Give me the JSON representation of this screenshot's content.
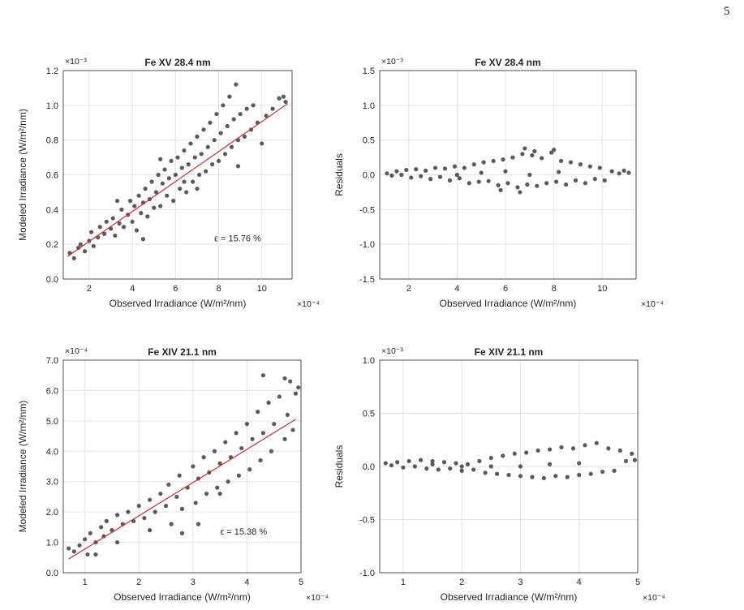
{
  "page_number": "5",
  "chart_data": [
    {
      "type": "scatter",
      "title": "Fe XV 28.4 nm",
      "xlabel": "Observed Irradiance (W/m²/nm)",
      "ylabel": "Modeled Irradiance (W/m²/nm)",
      "x_exponent": "×10⁻⁴",
      "y_exponent": "×10⁻³",
      "xlim": [
        0.8,
        11.4
      ],
      "ylim": [
        0.0,
        1.2
      ],
      "xticks": [
        "2",
        "4",
        "6",
        "8",
        "10"
      ],
      "yticks": [
        "0.0",
        "0.2",
        "0.4",
        "0.6",
        "0.8",
        "1.0",
        "1.2"
      ],
      "xtick_values": [
        2,
        4,
        6,
        8,
        10
      ],
      "ytick_values": [
        0,
        0.2,
        0.4,
        0.6,
        0.8,
        1.0,
        1.2
      ],
      "grid": true,
      "fit_line": {
        "x": [
          1.0,
          11.2
        ],
        "y": [
          0.13,
          1.01
        ]
      },
      "annotation": "ϵ = 15.76 %",
      "point_color": "#5a5a5a",
      "fit_color": "#cc2b2b",
      "points": [
        [
          1.1,
          0.15
        ],
        [
          1.3,
          0.12
        ],
        [
          1.5,
          0.18
        ],
        [
          1.6,
          0.2
        ],
        [
          1.8,
          0.16
        ],
        [
          2.0,
          0.22
        ],
        [
          2.1,
          0.27
        ],
        [
          2.2,
          0.19
        ],
        [
          2.4,
          0.24
        ],
        [
          2.5,
          0.3
        ],
        [
          2.7,
          0.26
        ],
        [
          2.8,
          0.33
        ],
        [
          3.0,
          0.29
        ],
        [
          3.1,
          0.35
        ],
        [
          3.2,
          0.25
        ],
        [
          3.4,
          0.32
        ],
        [
          3.5,
          0.4
        ],
        [
          3.6,
          0.3
        ],
        [
          3.8,
          0.37
        ],
        [
          3.9,
          0.45
        ],
        [
          4.0,
          0.33
        ],
        [
          4.1,
          0.42
        ],
        [
          4.2,
          0.28
        ],
        [
          4.3,
          0.48
        ],
        [
          4.4,
          0.38
        ],
        [
          4.5,
          0.44
        ],
        [
          4.6,
          0.52
        ],
        [
          4.7,
          0.36
        ],
        [
          4.8,
          0.46
        ],
        [
          4.9,
          0.56
        ],
        [
          5.0,
          0.41
        ],
        [
          5.1,
          0.5
        ],
        [
          5.2,
          0.6
        ],
        [
          5.3,
          0.42
        ],
        [
          5.4,
          0.55
        ],
        [
          5.5,
          0.63
        ],
        [
          5.6,
          0.48
        ],
        [
          5.7,
          0.58
        ],
        [
          5.8,
          0.68
        ],
        [
          5.9,
          0.45
        ],
        [
          6.0,
          0.6
        ],
        [
          6.1,
          0.7
        ],
        [
          6.2,
          0.52
        ],
        [
          6.3,
          0.64
        ],
        [
          6.4,
          0.74
        ],
        [
          6.5,
          0.5
        ],
        [
          6.6,
          0.66
        ],
        [
          6.7,
          0.78
        ],
        [
          6.8,
          0.56
        ],
        [
          6.9,
          0.7
        ],
        [
          7.0,
          0.82
        ],
        [
          7.1,
          0.6
        ],
        [
          7.2,
          0.72
        ],
        [
          7.3,
          0.86
        ],
        [
          7.4,
          0.62
        ],
        [
          7.5,
          0.76
        ],
        [
          7.6,
          0.9
        ],
        [
          7.7,
          0.66
        ],
        [
          7.8,
          0.8
        ],
        [
          7.9,
          0.95
        ],
        [
          8.0,
          0.68
        ],
        [
          8.1,
          0.84
        ],
        [
          8.2,
          1.0
        ],
        [
          8.3,
          0.72
        ],
        [
          8.4,
          0.88
        ],
        [
          8.5,
          1.05
        ],
        [
          8.6,
          0.76
        ],
        [
          8.7,
          0.92
        ],
        [
          8.8,
          1.12
        ],
        [
          8.9,
          0.8
        ],
        [
          9.0,
          0.95
        ],
        [
          9.2,
          0.82
        ],
        [
          9.3,
          0.98
        ],
        [
          9.5,
          0.86
        ],
        [
          9.6,
          1.0
        ],
        [
          9.8,
          0.9
        ],
        [
          10.0,
          0.78
        ],
        [
          10.2,
          0.94
        ],
        [
          10.5,
          0.98
        ],
        [
          10.8,
          1.04
        ],
        [
          11.0,
          1.05
        ],
        [
          11.1,
          1.02
        ],
        [
          4.5,
          0.23
        ],
        [
          8.9,
          0.65
        ],
        [
          3.3,
          0.45
        ],
        [
          6.4,
          0.56
        ],
        [
          7.0,
          0.52
        ],
        [
          5.3,
          0.69
        ]
      ]
    },
    {
      "type": "scatter",
      "title": "Fe XV 28.4 nm",
      "xlabel": "Observed Irradiance (W/m²/nm)",
      "ylabel": "Residuals",
      "x_exponent": "×10⁻⁴",
      "y_exponent": "×10⁻³",
      "xlim": [
        0.8,
        11.4
      ],
      "ylim": [
        -1.5,
        1.5
      ],
      "xticks": [
        "2",
        "4",
        "6",
        "8",
        "10"
      ],
      "yticks": [
        "-1.5",
        "-1.0",
        "-0.5",
        "0.0",
        "0.5",
        "1.0",
        "1.5"
      ],
      "xtick_values": [
        2,
        4,
        6,
        8,
        10
      ],
      "ytick_values": [
        -1.5,
        -1.0,
        -0.5,
        0,
        0.5,
        1.0,
        1.5
      ],
      "grid": true,
      "point_color": "#5a5a5a",
      "points": [
        [
          1.1,
          0.02
        ],
        [
          1.3,
          -0.01
        ],
        [
          1.5,
          0.05
        ],
        [
          1.7,
          0.0
        ],
        [
          1.9,
          0.07
        ],
        [
          2.1,
          -0.04
        ],
        [
          2.3,
          0.08
        ],
        [
          2.5,
          -0.02
        ],
        [
          2.7,
          0.06
        ],
        [
          2.9,
          -0.06
        ],
        [
          3.1,
          0.1
        ],
        [
          3.3,
          -0.03
        ],
        [
          3.5,
          0.09
        ],
        [
          3.7,
          -0.08
        ],
        [
          3.9,
          0.12
        ],
        [
          4.1,
          -0.05
        ],
        [
          4.3,
          0.1
        ],
        [
          4.5,
          -0.12
        ],
        [
          4.7,
          0.15
        ],
        [
          4.9,
          -0.1
        ],
        [
          5.1,
          0.18
        ],
        [
          5.3,
          -0.09
        ],
        [
          5.5,
          0.2
        ],
        [
          5.7,
          -0.15
        ],
        [
          5.9,
          0.22
        ],
        [
          6.1,
          -0.12
        ],
        [
          6.3,
          0.25
        ],
        [
          6.5,
          -0.18
        ],
        [
          6.7,
          0.3
        ],
        [
          6.9,
          -0.14
        ],
        [
          7.1,
          0.28
        ],
        [
          7.3,
          -0.16
        ],
        [
          7.5,
          0.24
        ],
        [
          7.7,
          -0.12
        ],
        [
          7.9,
          0.32
        ],
        [
          8.1,
          -0.1
        ],
        [
          8.3,
          0.2
        ],
        [
          8.5,
          -0.14
        ],
        [
          8.7,
          0.18
        ],
        [
          8.9,
          -0.08
        ],
        [
          9.1,
          0.15
        ],
        [
          9.3,
          -0.12
        ],
        [
          9.5,
          0.12
        ],
        [
          9.7,
          -0.06
        ],
        [
          9.9,
          0.1
        ],
        [
          10.1,
          -0.08
        ],
        [
          10.4,
          0.05
        ],
        [
          10.7,
          0.02
        ],
        [
          10.9,
          0.06
        ],
        [
          11.1,
          0.03
        ],
        [
          6.8,
          0.38
        ],
        [
          7.2,
          0.34
        ],
        [
          8.0,
          0.36
        ],
        [
          5.8,
          -0.22
        ],
        [
          6.6,
          -0.25
        ],
        [
          4.0,
          0.0
        ],
        [
          5.0,
          0.03
        ],
        [
          6.0,
          0.05
        ],
        [
          7.0,
          0.0
        ],
        [
          8.2,
          0.04
        ]
      ]
    },
    {
      "type": "scatter",
      "title": "Fe XIV 21.1 nm",
      "xlabel": "Observed Irradiance (W/m²/nm)",
      "ylabel": "Modeled Irradiance (W/m²/nm)",
      "x_exponent": "×10⁻⁴",
      "y_exponent": "×10⁻⁴",
      "xlim": [
        0.6,
        5.0
      ],
      "ylim": [
        0.0,
        7.0
      ],
      "xticks": [
        "1",
        "2",
        "3",
        "4",
        "5"
      ],
      "yticks": [
        "0.0",
        "1.0",
        "2.0",
        "3.0",
        "4.0",
        "5.0",
        "6.0",
        "7.0"
      ],
      "xtick_values": [
        1,
        2,
        3,
        4,
        5
      ],
      "ytick_values": [
        0,
        1,
        2,
        3,
        4,
        5,
        6,
        7
      ],
      "grid": true,
      "fit_line": {
        "x": [
          0.7,
          4.9
        ],
        "y": [
          0.45,
          5.05
        ]
      },
      "annotation": "ϵ = 15.38 %",
      "point_color": "#5a5a5a",
      "fit_color": "#cc2b2b",
      "points": [
        [
          0.7,
          0.8
        ],
        [
          0.8,
          0.7
        ],
        [
          0.9,
          0.9
        ],
        [
          1.0,
          1.1
        ],
        [
          1.05,
          0.6
        ],
        [
          1.1,
          1.3
        ],
        [
          1.2,
          1.0
        ],
        [
          1.3,
          1.5
        ],
        [
          1.35,
          1.2
        ],
        [
          1.4,
          1.7
        ],
        [
          1.5,
          1.4
        ],
        [
          1.6,
          1.9
        ],
        [
          1.7,
          1.6
        ],
        [
          1.8,
          2.0
        ],
        [
          1.9,
          1.7
        ],
        [
          2.0,
          2.2
        ],
        [
          2.1,
          1.8
        ],
        [
          2.2,
          2.4
        ],
        [
          2.3,
          2.0
        ],
        [
          2.4,
          2.6
        ],
        [
          2.5,
          2.2
        ],
        [
          2.55,
          2.9
        ],
        [
          2.6,
          1.6
        ],
        [
          2.7,
          2.5
        ],
        [
          2.75,
          3.2
        ],
        [
          2.8,
          2.1
        ],
        [
          2.9,
          2.8
        ],
        [
          3.0,
          3.5
        ],
        [
          3.05,
          2.3
        ],
        [
          3.1,
          3.1
        ],
        [
          3.2,
          3.8
        ],
        [
          3.25,
          2.6
        ],
        [
          3.3,
          3.3
        ],
        [
          3.4,
          4.0
        ],
        [
          3.45,
          2.8
        ],
        [
          3.5,
          3.6
        ],
        [
          3.6,
          4.3
        ],
        [
          3.65,
          3.0
        ],
        [
          3.7,
          3.8
        ],
        [
          3.8,
          4.6
        ],
        [
          3.85,
          3.2
        ],
        [
          3.9,
          4.1
        ],
        [
          4.0,
          4.9
        ],
        [
          4.05,
          3.4
        ],
        [
          4.1,
          4.4
        ],
        [
          4.2,
          5.3
        ],
        [
          4.25,
          3.7
        ],
        [
          4.3,
          4.6
        ],
        [
          4.4,
          5.6
        ],
        [
          4.45,
          4.0
        ],
        [
          4.5,
          4.9
        ],
        [
          4.6,
          5.8
        ],
        [
          4.7,
          4.4
        ],
        [
          4.75,
          5.2
        ],
        [
          4.8,
          6.3
        ],
        [
          4.85,
          4.7
        ],
        [
          4.9,
          5.9
        ],
        [
          4.3,
          6.5
        ],
        [
          4.7,
          6.4
        ],
        [
          4.95,
          6.1
        ],
        [
          3.1,
          1.6
        ],
        [
          2.8,
          1.3
        ],
        [
          1.6,
          1.0
        ],
        [
          3.5,
          2.6
        ],
        [
          1.2,
          0.6
        ],
        [
          2.2,
          1.4
        ]
      ]
    },
    {
      "type": "scatter",
      "title": "Fe XIV 21.1 nm",
      "xlabel": "Observed Irradiance (W/m²/nm)",
      "ylabel": "Residuals",
      "x_exponent": "×10⁻⁴",
      "y_exponent": "×10⁻³",
      "xlim": [
        0.6,
        5.0
      ],
      "ylim": [
        -1.0,
        1.0
      ],
      "xticks": [
        "1",
        "2",
        "3",
        "4",
        "5"
      ],
      "yticks": [
        "-1.0",
        "-0.5",
        "0.0",
        "0.5",
        "1.0"
      ],
      "xtick_values": [
        1,
        2,
        3,
        4,
        5
      ],
      "ytick_values": [
        -1.0,
        -0.5,
        0,
        0.5,
        1.0
      ],
      "grid": true,
      "point_color": "#5a5a5a",
      "points": [
        [
          0.7,
          0.03
        ],
        [
          0.8,
          0.01
        ],
        [
          0.9,
          0.04
        ],
        [
          1.0,
          -0.01
        ],
        [
          1.1,
          0.05
        ],
        [
          1.2,
          0.0
        ],
        [
          1.3,
          0.06
        ],
        [
          1.4,
          -0.02
        ],
        [
          1.5,
          0.05
        ],
        [
          1.6,
          -0.03
        ],
        [
          1.7,
          0.04
        ],
        [
          1.8,
          -0.02
        ],
        [
          1.9,
          0.03
        ],
        [
          2.0,
          -0.04
        ],
        [
          2.1,
          0.02
        ],
        [
          2.2,
          -0.03
        ],
        [
          2.3,
          0.05
        ],
        [
          2.4,
          -0.06
        ],
        [
          2.5,
          0.08
        ],
        [
          2.6,
          -0.07
        ],
        [
          2.7,
          0.1
        ],
        [
          2.8,
          -0.08
        ],
        [
          2.9,
          0.12
        ],
        [
          3.0,
          -0.09
        ],
        [
          3.1,
          0.13
        ],
        [
          3.2,
          -0.1
        ],
        [
          3.3,
          0.15
        ],
        [
          3.4,
          -0.11
        ],
        [
          3.5,
          0.16
        ],
        [
          3.6,
          -0.09
        ],
        [
          3.7,
          0.18
        ],
        [
          3.8,
          -0.1
        ],
        [
          3.9,
          0.17
        ],
        [
          4.0,
          -0.08
        ],
        [
          4.1,
          0.2
        ],
        [
          4.2,
          -0.07
        ],
        [
          4.3,
          0.22
        ],
        [
          4.4,
          -0.05
        ],
        [
          4.5,
          0.17
        ],
        [
          4.6,
          -0.04
        ],
        [
          4.7,
          0.15
        ],
        [
          4.8,
          0.05
        ],
        [
          4.9,
          0.12
        ],
        [
          4.95,
          0.06
        ],
        [
          3.0,
          0.0
        ],
        [
          3.5,
          0.02
        ],
        [
          4.0,
          0.03
        ],
        [
          2.5,
          0.0
        ],
        [
          2.0,
          0.0
        ],
        [
          1.5,
          0.02
        ]
      ]
    }
  ]
}
